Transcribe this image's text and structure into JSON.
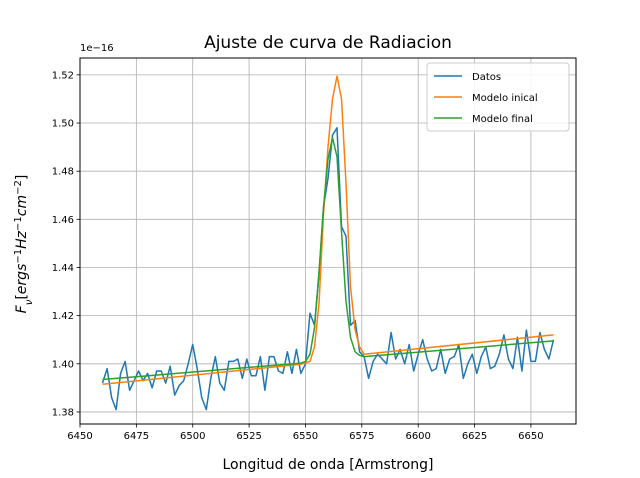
{
  "chart_data": {
    "type": "line",
    "title": "Ajuste de curva de Radiacion",
    "xlabel": "Longitud de onda [Armstrong]",
    "ylabel": "F_ν[ergs^{-1}Hz^{-1}cm^{-2}]",
    "y_offset_label": "1e−16",
    "xlim": [
      6450,
      6670
    ],
    "ylim": [
      1.375,
      1.527
    ],
    "xticks": [
      6450,
      6475,
      6500,
      6525,
      6550,
      6575,
      6600,
      6625,
      6650
    ],
    "yticks": [
      1.38,
      1.4,
      1.42,
      1.44,
      1.46,
      1.48,
      1.5,
      1.52
    ],
    "ytick_labels": [
      "1.38",
      "1.40",
      "1.42",
      "1.44",
      "1.46",
      "1.48",
      "1.50",
      "1.52"
    ],
    "grid": true,
    "legend_position": "top-right",
    "series": [
      {
        "name": "Datos",
        "color": "#1f77b4",
        "x": [
          6460,
          6462,
          6464,
          6466,
          6468,
          6470,
          6472,
          6474,
          6476,
          6478,
          6480,
          6482,
          6484,
          6486,
          6488,
          6490,
          6492,
          6494,
          6496,
          6498,
          6500,
          6502,
          6504,
          6506,
          6508,
          6510,
          6512,
          6514,
          6516,
          6518,
          6520,
          6522,
          6524,
          6526,
          6528,
          6530,
          6532,
          6534,
          6536,
          6538,
          6540,
          6542,
          6544,
          6546,
          6548,
          6550,
          6552,
          6554,
          6556,
          6558,
          6560,
          6562,
          6564,
          6566,
          6568,
          6570,
          6572,
          6574,
          6576,
          6578,
          6580,
          6582,
          6584,
          6586,
          6588,
          6590,
          6592,
          6594,
          6596,
          6598,
          6600,
          6602,
          6604,
          6606,
          6608,
          6610,
          6612,
          6614,
          6616,
          6618,
          6620,
          6622,
          6624,
          6626,
          6628,
          6630,
          6632,
          6634,
          6636,
          6638,
          6640,
          6642,
          6644,
          6646,
          6648,
          6650,
          6652,
          6654,
          6656,
          6658,
          6660
        ],
        "values": [
          1.392,
          1.398,
          1.386,
          1.381,
          1.396,
          1.401,
          1.389,
          1.393,
          1.397,
          1.393,
          1.396,
          1.39,
          1.397,
          1.397,
          1.392,
          1.399,
          1.387,
          1.391,
          1.393,
          1.4,
          1.408,
          1.398,
          1.386,
          1.381,
          1.394,
          1.403,
          1.392,
          1.389,
          1.401,
          1.401,
          1.402,
          1.394,
          1.402,
          1.395,
          1.395,
          1.403,
          1.389,
          1.403,
          1.403,
          1.397,
          1.396,
          1.405,
          1.396,
          1.406,
          1.396,
          1.4,
          1.421,
          1.416,
          1.437,
          1.465,
          1.477,
          1.495,
          1.498,
          1.457,
          1.453,
          1.416,
          1.418,
          1.405,
          1.403,
          1.394,
          1.401,
          1.404,
          1.402,
          1.4,
          1.413,
          1.402,
          1.406,
          1.4,
          1.408,
          1.397,
          1.404,
          1.41,
          1.402,
          1.397,
          1.398,
          1.406,
          1.396,
          1.402,
          1.403,
          1.408,
          1.394,
          1.4,
          1.404,
          1.396,
          1.403,
          1.407,
          1.398,
          1.399,
          1.404,
          1.412,
          1.402,
          1.398,
          1.411,
          1.397,
          1.414,
          1.401,
          1.401,
          1.413,
          1.406,
          1.402,
          1.41
        ]
      },
      {
        "name": "Modelo inical",
        "color": "#ff7f0e",
        "x": [
          6460,
          6548,
          6552,
          6554,
          6556,
          6558,
          6560,
          6562,
          6564,
          6566,
          6568,
          6570,
          6572,
          6574,
          6576,
          6660
        ],
        "values": [
          1.3915,
          1.3998,
          1.401,
          1.407,
          1.425,
          1.462,
          1.49,
          1.51,
          1.5195,
          1.51,
          1.475,
          1.432,
          1.414,
          1.407,
          1.404,
          1.412
        ]
      },
      {
        "name": "Modelo final",
        "color": "#2ca02c",
        "x": [
          6460,
          6548,
          6550,
          6552,
          6554,
          6556,
          6558,
          6560,
          6562,
          6564,
          6566,
          6568,
          6570,
          6572,
          6574,
          6576,
          6660
        ],
        "values": [
          1.3935,
          1.4003,
          1.401,
          1.404,
          1.415,
          1.438,
          1.465,
          1.485,
          1.494,
          1.486,
          1.455,
          1.426,
          1.411,
          1.405,
          1.4035,
          1.403,
          1.4095
        ]
      }
    ]
  }
}
